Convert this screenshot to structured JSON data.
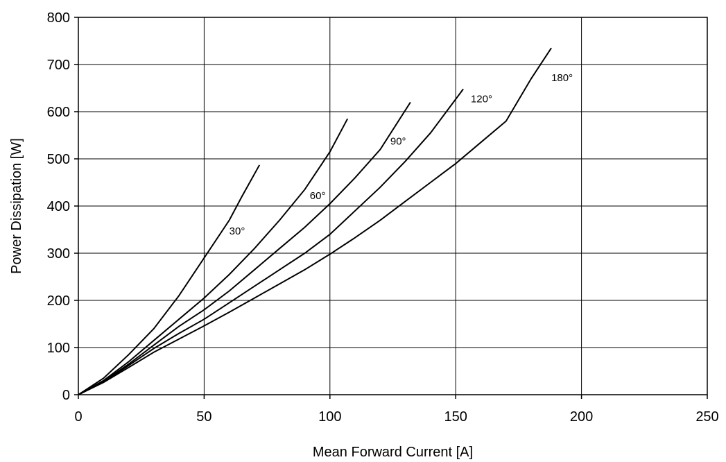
{
  "chart_data": {
    "type": "line",
    "title": "",
    "xlabel": "Mean Forward Current [A]",
    "ylabel": "Power Dissipation [W]",
    "xlim": [
      0,
      250
    ],
    "ylim": [
      0,
      800
    ],
    "xticks": [
      0,
      50,
      100,
      150,
      200,
      250
    ],
    "yticks": [
      0,
      100,
      200,
      300,
      400,
      500,
      600,
      700,
      800
    ],
    "grid": true,
    "legend": "none",
    "line_color": "#000000",
    "series": [
      {
        "name": "30°",
        "label_at": [
          60,
          340
        ],
        "points": [
          [
            0,
            0
          ],
          [
            10,
            35
          ],
          [
            20,
            85
          ],
          [
            30,
            140
          ],
          [
            40,
            210
          ],
          [
            50,
            290
          ],
          [
            60,
            370
          ],
          [
            65,
            420
          ],
          [
            72,
            487
          ]
        ]
      },
      {
        "name": "60°",
        "label_at": [
          92,
          415
        ],
        "points": [
          [
            0,
            0
          ],
          [
            10,
            30
          ],
          [
            20,
            70
          ],
          [
            30,
            115
          ],
          [
            40,
            160
          ],
          [
            50,
            205
          ],
          [
            60,
            255
          ],
          [
            70,
            310
          ],
          [
            80,
            370
          ],
          [
            90,
            435
          ],
          [
            100,
            515
          ],
          [
            107,
            585
          ]
        ]
      },
      {
        "name": "90°",
        "label_at": [
          124,
          530
        ],
        "points": [
          [
            0,
            0
          ],
          [
            10,
            28
          ],
          [
            20,
            65
          ],
          [
            30,
            105
          ],
          [
            40,
            145
          ],
          [
            50,
            180
          ],
          [
            60,
            220
          ],
          [
            70,
            265
          ],
          [
            80,
            310
          ],
          [
            90,
            355
          ],
          [
            100,
            405
          ],
          [
            110,
            460
          ],
          [
            120,
            520
          ],
          [
            132,
            620
          ]
        ]
      },
      {
        "name": "120°",
        "label_at": [
          156,
          620
        ],
        "points": [
          [
            0,
            0
          ],
          [
            10,
            27
          ],
          [
            20,
            62
          ],
          [
            30,
            98
          ],
          [
            40,
            130
          ],
          [
            50,
            160
          ],
          [
            60,
            195
          ],
          [
            70,
            230
          ],
          [
            80,
            265
          ],
          [
            90,
            300
          ],
          [
            100,
            340
          ],
          [
            110,
            390
          ],
          [
            120,
            440
          ],
          [
            130,
            495
          ],
          [
            140,
            555
          ],
          [
            153,
            648
          ]
        ]
      },
      {
        "name": "180°",
        "label_at": [
          188,
          665
        ],
        "points": [
          [
            0,
            0
          ],
          [
            10,
            26
          ],
          [
            20,
            58
          ],
          [
            30,
            90
          ],
          [
            40,
            118
          ],
          [
            50,
            146
          ],
          [
            60,
            175
          ],
          [
            70,
            205
          ],
          [
            80,
            235
          ],
          [
            90,
            265
          ],
          [
            100,
            298
          ],
          [
            110,
            333
          ],
          [
            120,
            370
          ],
          [
            130,
            410
          ],
          [
            140,
            450
          ],
          [
            150,
            490
          ],
          [
            160,
            535
          ],
          [
            170,
            580
          ],
          [
            180,
            670
          ],
          [
            188,
            735
          ]
        ]
      }
    ]
  }
}
